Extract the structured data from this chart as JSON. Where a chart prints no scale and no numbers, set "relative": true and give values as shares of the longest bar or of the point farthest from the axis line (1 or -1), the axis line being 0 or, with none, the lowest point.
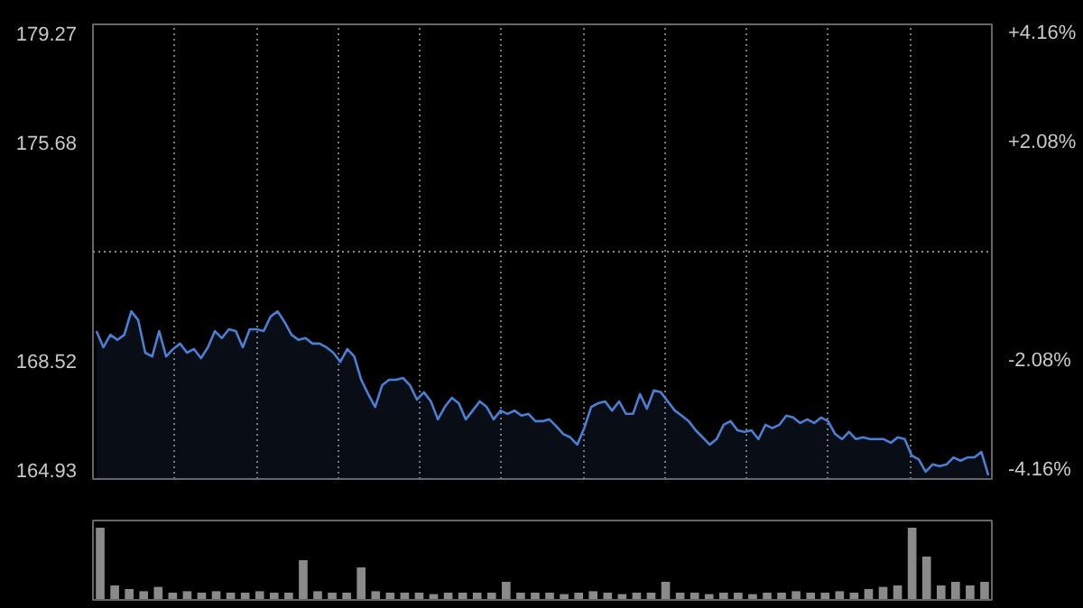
{
  "chart_data": [
    {
      "type": "area",
      "color": "#4a7fd4",
      "grid": "x",
      "tick_labels": "y",
      "categories": [
        null,
        null,
        null,
        null,
        null,
        null,
        null,
        null,
        null,
        null,
        null,
        null,
        null,
        null,
        null,
        null,
        null,
        null,
        null,
        null,
        null,
        null,
        null,
        null,
        null,
        null,
        null,
        null,
        null,
        null,
        null,
        null,
        null,
        null,
        null,
        null,
        null,
        null,
        null,
        null,
        null,
        null,
        null,
        null,
        null,
        null,
        null,
        null,
        null,
        null,
        null,
        null,
        null,
        null,
        null,
        null,
        null,
        null,
        null,
        null,
        null,
        null,
        null,
        null,
        null,
        null,
        null,
        null,
        null,
        null,
        null,
        null,
        null,
        null,
        null,
        null,
        null,
        null,
        null,
        null,
        null,
        null,
        null,
        null,
        null,
        null,
        null,
        null,
        null,
        null,
        null,
        null,
        null,
        null,
        null,
        null,
        null,
        null,
        null,
        null,
        null,
        null,
        null,
        null,
        null,
        null,
        null,
        null,
        null,
        null,
        null,
        null,
        null,
        null,
        null,
        null,
        null,
        null,
        null,
        null,
        null,
        null,
        null,
        null,
        null,
        null,
        null,
        null,
        null
      ],
      "values": [
        169.49,
        168.96,
        169.37,
        169.2,
        169.37,
        170.14,
        169.85,
        168.78,
        168.66,
        169.49,
        168.66,
        168.9,
        169.08,
        168.78,
        168.9,
        168.6,
        168.96,
        169.49,
        169.26,
        169.55,
        169.49,
        168.96,
        169.55,
        169.55,
        169.49,
        169.97,
        170.14,
        169.79,
        169.37,
        169.2,
        169.26,
        169.08,
        169.08,
        168.96,
        168.78,
        168.48,
        168.9,
        168.66,
        167.89,
        167.42,
        167.0,
        167.71,
        167.89,
        167.89,
        167.95,
        167.71,
        167.24,
        167.48,
        167.18,
        166.59,
        167.0,
        167.3,
        167.12,
        166.59,
        166.88,
        167.18,
        167.0,
        166.59,
        166.88,
        166.77,
        166.88,
        166.71,
        166.77,
        166.53,
        166.53,
        166.59,
        166.36,
        166.11,
        166.0,
        165.76,
        166.3,
        167.0,
        167.12,
        167.18,
        166.88,
        167.18,
        166.77,
        166.77,
        167.42,
        166.94,
        167.54,
        167.48,
        167.18,
        166.88,
        166.71,
        166.53,
        166.23,
        166.0,
        165.76,
        165.94,
        166.41,
        166.53,
        166.23,
        166.18,
        166.23,
        165.94,
        166.41,
        166.3,
        166.41,
        166.71,
        166.65,
        166.47,
        166.59,
        166.47,
        166.65,
        166.53,
        166.11,
        165.94,
        166.18,
        165.94,
        166.0,
        165.94,
        165.94,
        165.94,
        165.82,
        166.0,
        165.94,
        165.4,
        165.28,
        164.87,
        165.11,
        165.05,
        165.11,
        165.34,
        165.23,
        165.34,
        165.34,
        165.52,
        164.75
      ],
      "ylim": [
        164.63,
        179.57
      ],
      "yticks": [
        179.27,
        175.68,
        168.52,
        164.93
      ],
      "y2lim": [
        -4.34,
        4.34
      ],
      "y2ticks": [
        {
          "value": 4.16,
          "label": "+4.16%"
        },
        {
          "value": 2.08,
          "label": "+2.08%"
        },
        {
          "value": -2.08,
          "label": "-2.08%"
        },
        {
          "value": -4.16,
          "label": "-4.16%"
        }
      ],
      "ref_lines": [
        {
          "axis": "y",
          "value": 172.1,
          "color": "#888888",
          "line_style": "dotted"
        }
      ]
    },
    {
      "type": "bar",
      "relative": true,
      "color": "#8a8a8a",
      "categories": [
        null,
        null,
        null,
        null,
        null,
        null,
        null,
        null,
        null,
        null,
        null,
        null,
        null,
        null,
        null,
        null,
        null,
        null,
        null,
        null,
        null,
        null,
        null,
        null,
        null,
        null,
        null,
        null,
        null,
        null,
        null,
        null,
        null,
        null,
        null,
        null,
        null,
        null,
        null,
        null,
        null,
        null,
        null,
        null,
        null,
        null,
        null,
        null,
        null,
        null,
        null,
        null,
        null,
        null,
        null,
        null,
        null,
        null,
        null,
        null,
        null,
        null
      ],
      "values": [
        1.0,
        0.2,
        0.15,
        0.12,
        0.18,
        0.1,
        0.12,
        0.1,
        0.12,
        0.1,
        0.1,
        0.12,
        0.1,
        0.1,
        0.55,
        0.12,
        0.1,
        0.1,
        0.45,
        0.12,
        0.1,
        0.1,
        0.1,
        0.08,
        0.1,
        0.1,
        0.1,
        0.1,
        0.25,
        0.1,
        0.1,
        0.1,
        0.08,
        0.1,
        0.12,
        0.1,
        0.08,
        0.1,
        0.1,
        0.25,
        0.1,
        0.1,
        0.08,
        0.1,
        0.1,
        0.08,
        0.1,
        0.1,
        0.12,
        0.1,
        0.1,
        0.12,
        0.1,
        0.15,
        0.18,
        0.2,
        1.0,
        0.6,
        0.2,
        0.25,
        0.2,
        0.25
      ]
    }
  ]
}
